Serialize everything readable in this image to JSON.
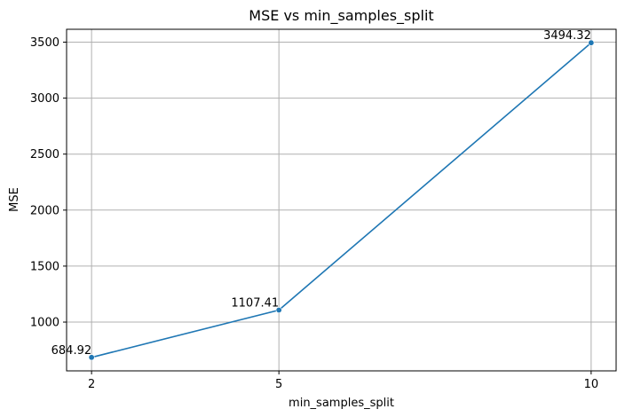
{
  "chart_data": {
    "type": "line",
    "title": "MSE vs min_samples_split",
    "xlabel": "min_samples_split",
    "ylabel": "MSE",
    "x": [
      2,
      5,
      10
    ],
    "series": [
      {
        "values": [
          684.92,
          1107.41,
          3494.32
        ]
      }
    ],
    "data_labels": [
      "684.92",
      "1107.41",
      "3494.32"
    ],
    "xticks": [
      2,
      5,
      10
    ],
    "yticks": [
      1000,
      1500,
      2000,
      2500,
      3000,
      3500
    ],
    "xlim": [
      1.6,
      10.4
    ],
    "ylim": [
      564.45,
      3614.79
    ],
    "grid": true,
    "colors": {
      "line": "#1f77b4",
      "grid": "#b0b0b0",
      "axes": "#000000"
    }
  }
}
